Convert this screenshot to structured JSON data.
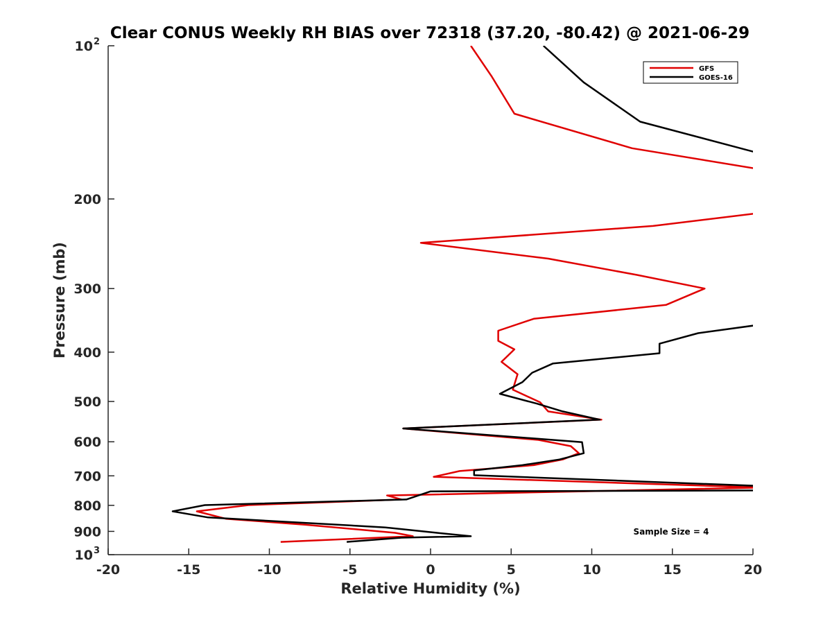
{
  "chart_data": {
    "type": "line",
    "title": "Clear CONUS Weekly RH BIAS over 72318 (37.20, -80.42) @ 2021-06-29",
    "xlabel": "Relative Humidity (%)",
    "ylabel": "Pressure (mb)",
    "xlim": [
      -20,
      20
    ],
    "ylim": [
      100,
      1000
    ],
    "y_scale": "log",
    "y_reversed": true,
    "x_ticks": [
      "-20",
      "-15",
      "-10",
      "-5",
      "0",
      "5",
      "10",
      "15",
      "20"
    ],
    "y_ticks": [
      {
        "value": 100,
        "label": "10",
        "sup": "2"
      },
      {
        "value": 200,
        "label": "200"
      },
      {
        "value": 300,
        "label": "300"
      },
      {
        "value": 400,
        "label": "400"
      },
      {
        "value": 500,
        "label": "500"
      },
      {
        "value": 600,
        "label": "600"
      },
      {
        "value": 700,
        "label": "700"
      },
      {
        "value": 800,
        "label": "800"
      },
      {
        "value": 900,
        "label": "900"
      },
      {
        "value": 1000,
        "label": "10",
        "sup": "3"
      }
    ],
    "grid": false,
    "legend": "top-right",
    "annotation": "Sample Size = 4",
    "series": [
      {
        "name": "GFS",
        "color": "#e00000",
        "points": [
          [
            2.5,
            100
          ],
          [
            3.8,
            115
          ],
          [
            5.2,
            136
          ],
          [
            12.5,
            159
          ],
          [
            20.5,
            175
          ],
          [
            null,
            null
          ],
          [
            20.5,
            213
          ],
          [
            13.8,
            226
          ],
          [
            -0.6,
            244
          ],
          [
            7.3,
            262
          ],
          [
            12.8,
            282
          ],
          [
            17.0,
            300
          ],
          [
            14.6,
            323
          ],
          [
            6.4,
            344
          ],
          [
            4.2,
            363
          ],
          [
            4.2,
            380
          ],
          [
            5.2,
            395
          ],
          [
            4.4,
            418
          ],
          [
            5.4,
            442
          ],
          [
            5.1,
            474
          ],
          [
            6.8,
            502
          ],
          [
            7.3,
            523
          ],
          [
            10.6,
            543
          ],
          [
            -1.7,
            565
          ],
          [
            6.7,
            595
          ],
          [
            8.7,
            612
          ],
          [
            9.2,
            632
          ],
          [
            8.2,
            650
          ],
          [
            6.4,
            667
          ],
          [
            1.8,
            685
          ],
          [
            0.2,
            703
          ],
          [
            20.5,
            738
          ],
          [
            -2.7,
            765
          ],
          [
            -1.8,
            779
          ],
          [
            -11.3,
            799
          ],
          [
            -14.5,
            822
          ],
          [
            -12.7,
            850
          ],
          [
            -7.8,
            873
          ],
          [
            -2.2,
            906
          ],
          [
            -1.1,
            920
          ],
          [
            -9.3,
            944
          ]
        ]
      },
      {
        "name": "GOES-16",
        "color": "#000000",
        "points": [
          [
            7.0,
            100
          ],
          [
            9.5,
            118
          ],
          [
            13.0,
            141
          ],
          [
            20.5,
            163
          ],
          [
            null,
            null
          ],
          [
            20.5,
            353
          ],
          [
            16.6,
            367
          ],
          [
            14.2,
            385
          ],
          [
            14.2,
            402
          ],
          [
            7.6,
            421
          ],
          [
            6.3,
            439
          ],
          [
            5.7,
            458
          ],
          [
            4.3,
            483
          ],
          [
            6.6,
            505
          ],
          [
            8.2,
            523
          ],
          [
            10.5,
            543
          ],
          [
            -1.7,
            565
          ],
          [
            9.4,
            601
          ],
          [
            9.5,
            632
          ],
          [
            8.0,
            650
          ],
          [
            5.7,
            667
          ],
          [
            2.7,
            683
          ],
          [
            2.7,
            698
          ],
          [
            20.5,
            733
          ],
          [
            20.5,
            748
          ],
          [
            0.0,
            751
          ],
          [
            -1.5,
            779
          ],
          [
            -14.0,
            799
          ],
          [
            -16.0,
            822
          ],
          [
            -13.8,
            845
          ],
          [
            -2.8,
            884
          ],
          [
            0.4,
            906
          ],
          [
            2.5,
            920
          ],
          [
            -1.8,
            926
          ],
          [
            -5.2,
            944
          ]
        ]
      }
    ]
  }
}
